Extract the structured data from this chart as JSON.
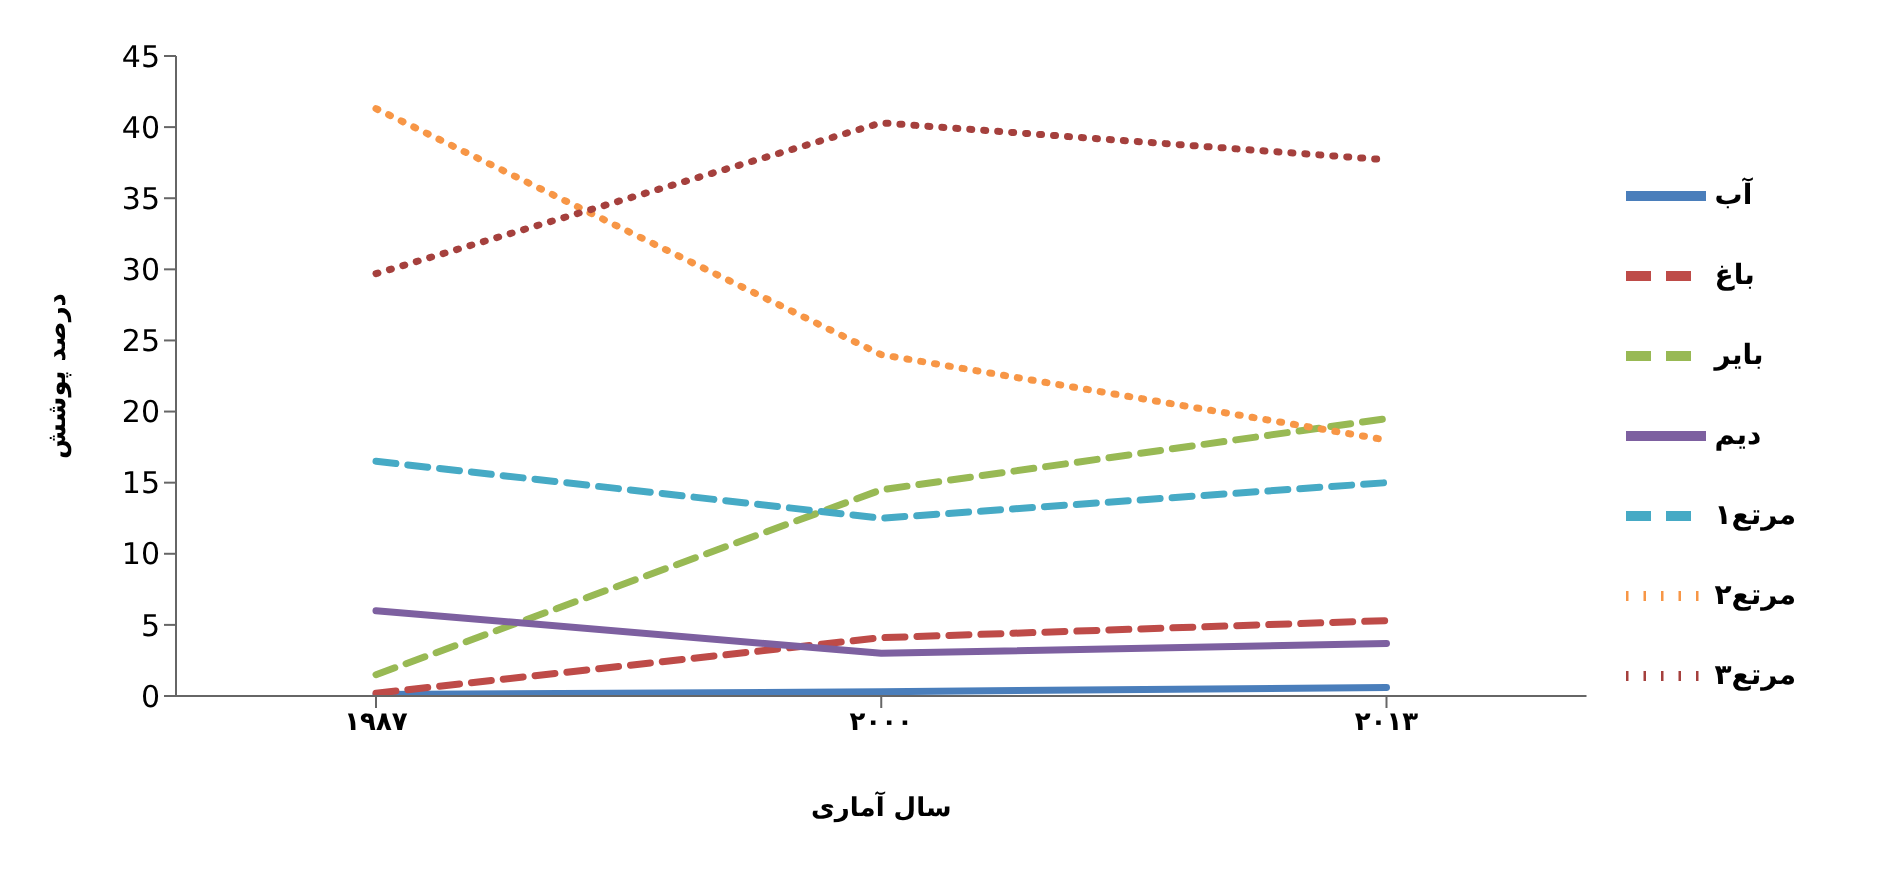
{
  "chart_data": {
    "type": "line",
    "xlabel": "سال آماری",
    "ylabel": "درصد پوشش",
    "categories": [
      "۱۹۸۷",
      "۲۰۰۰",
      "۲۰۱۳"
    ],
    "ylim": [
      0,
      45
    ],
    "yticks": [
      0,
      5,
      10,
      15,
      20,
      25,
      30,
      35,
      40,
      45
    ],
    "legend": "right",
    "series": [
      {
        "name": "آب",
        "color": "#4a7ebb",
        "values": [
          0.1,
          0.3,
          0.6
        ],
        "line_style": "solid"
      },
      {
        "name": "باغ",
        "color": "#be4b48",
        "values": [
          0.2,
          4.1,
          5.3
        ],
        "line_style": "dashed"
      },
      {
        "name": "بایر",
        "color": "#98b954",
        "values": [
          1.5,
          14.5,
          19.5
        ],
        "line_style": "dashed"
      },
      {
        "name": "دیم",
        "color": "#7d60a0",
        "values": [
          6,
          3,
          3.7
        ],
        "line_style": "solid"
      },
      {
        "name": "مرتع۱",
        "color": "#46aac5",
        "values": [
          16.5,
          12.5,
          15
        ],
        "line_style": "dashed"
      },
      {
        "name": "مرتع۲",
        "color": "#f79646",
        "values": [
          41.3,
          24,
          18
        ],
        "line_style": "dotted"
      },
      {
        "name": "مرتع۳",
        "color": "#a5403d",
        "values": [
          29.7,
          40.3,
          37.7
        ],
        "line_style": "dotted"
      }
    ]
  }
}
